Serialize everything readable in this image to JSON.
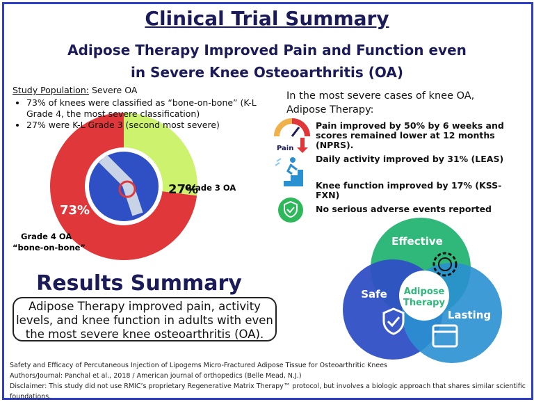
{
  "header": {
    "title": "Clinical Trial Summary",
    "subtitle": "Adipose Therapy Improved Pain and Function even in Severe Knee Osteoarthritis (OA)"
  },
  "population": {
    "label": "Study Population:",
    "value": "Severe OA",
    "bullets": [
      "73% of knees were classified as “bone-on-bone” (K-L Grade 4, the most severe classification)",
      "27% were K-L Grade 3 (second most severe)"
    ]
  },
  "chart_data": {
    "type": "pie",
    "categories": [
      "Grade 4 OA",
      "Grade 3 OA"
    ],
    "values": [
      73,
      27
    ],
    "value_labels": [
      "73%",
      "27%"
    ],
    "colors": [
      "#e0383a",
      "#cdf26e"
    ],
    "annotation": "“bone-on-bone”"
  },
  "findings": {
    "heading": "In the most severe cases of knee OA, Adipose Therapy:",
    "pain_icon_label": "Pain",
    "items": [
      "Pain improved by 50% by 6 weeks and scores remained lower at 12 months (NPRS).",
      "Daily activity improved by 31% (LEAS)",
      "Knee function improved by 17% (KSS-FXN)",
      "No serious adverse events reported"
    ]
  },
  "venn": {
    "top": "Effective",
    "left": "Safe",
    "right": "Lasting",
    "center": "Adipose Therapy"
  },
  "results": {
    "title": "Results Summary",
    "text": "Adipose Therapy improved pain, activity levels, and knee function in adults with even the most severe knee osteoarthritis (OA)."
  },
  "footer": [
    "Safety and Efficacy of Percutaneous Injection of Lipogems Micro-Fractured Adipose Tissue for Osteoarthritic Knees",
    "Authors/Journal: Panchal et al., 2018 / American journal of orthopedics (Belle Mead, N.J.)",
    "Disclaimer: This study did not use RMIC’s proprietary Regenerative Matrix Therapy™ protocol, but involves a biologic approach that shares similar scientific foundations."
  ]
}
